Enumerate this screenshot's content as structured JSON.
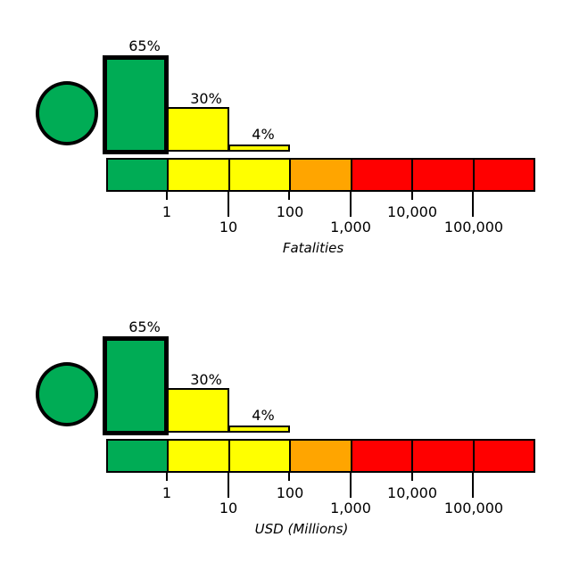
{
  "colors": {
    "green": "#00AC55",
    "yellow": "#FFFF00",
    "orange": "#FFA500",
    "red": "#FF0000",
    "outline": "#000000"
  },
  "panels": [
    {
      "axis_label": "Fatalities",
      "marker": {
        "shape": "circle",
        "color": "#00AC55"
      },
      "bars": [
        {
          "label": "65%",
          "value": 65,
          "color": "#00AC55",
          "emphasized": true
        },
        {
          "label": "30%",
          "value": 30,
          "color": "#FFFF00",
          "emphasized": false
        },
        {
          "label": "4%",
          "value": 4,
          "color": "#FFFF00",
          "emphasized": false
        }
      ],
      "scale": {
        "segments": [
          {
            "color": "#00AC55"
          },
          {
            "color": "#FFFF00"
          },
          {
            "color": "#FFFF00"
          },
          {
            "color": "#FFA500"
          },
          {
            "color": "#FF0000"
          },
          {
            "color": "#FF0000"
          },
          {
            "color": "#FF0000"
          }
        ],
        "tick_labels_row1": [
          "1",
          "100",
          "10,000"
        ],
        "tick_labels_row2": [
          "10",
          "1,000",
          "100,000"
        ]
      }
    },
    {
      "axis_label": "USD (Millions)",
      "marker": {
        "shape": "circle",
        "color": "#00AC55"
      },
      "bars": [
        {
          "label": "65%",
          "value": 65,
          "color": "#00AC55",
          "emphasized": true
        },
        {
          "label": "30%",
          "value": 30,
          "color": "#FFFF00",
          "emphasized": false
        },
        {
          "label": "4%",
          "value": 4,
          "color": "#FFFF00",
          "emphasized": false
        }
      ],
      "scale": {
        "segments": [
          {
            "color": "#00AC55"
          },
          {
            "color": "#FFFF00"
          },
          {
            "color": "#FFFF00"
          },
          {
            "color": "#FFA500"
          },
          {
            "color": "#FF0000"
          },
          {
            "color": "#FF0000"
          },
          {
            "color": "#FF0000"
          }
        ],
        "tick_labels_row1": [
          "1",
          "100",
          "10,000"
        ],
        "tick_labels_row2": [
          "10",
          "1,000",
          "100,000"
        ]
      }
    }
  ],
  "chart_data": [
    {
      "type": "bar",
      "xlabel": "Fatalities",
      "x_scale": "log10",
      "bin_edges": [
        0.1,
        1,
        10,
        100
      ],
      "categories": [
        "0.1-1",
        "1-10",
        "10-100"
      ],
      "values": [
        65,
        30,
        4
      ],
      "bar_labels": [
        "65%",
        "30%",
        "4%"
      ],
      "x_ticks": [
        1,
        10,
        100,
        1000,
        10000,
        100000
      ],
      "x_tick_labels": [
        "1",
        "10",
        "100",
        "1,000",
        "10,000",
        "100,000"
      ],
      "x_range": [
        0.1,
        1000000
      ],
      "ylim": [
        0,
        70
      ],
      "grid": false,
      "marker": "green circle at far left",
      "color_scale_bins": [
        {
          "range": [
            0.1,
            1
          ],
          "color": "#00AC55",
          "level": "green"
        },
        {
          "range": [
            1,
            10
          ],
          "color": "#FFFF00",
          "level": "yellow"
        },
        {
          "range": [
            10,
            100
          ],
          "color": "#FFFF00",
          "level": "yellow"
        },
        {
          "range": [
            100,
            1000
          ],
          "color": "#FFA500",
          "level": "orange"
        },
        {
          "range": [
            1000,
            10000
          ],
          "color": "#FF0000",
          "level": "red"
        },
        {
          "range": [
            10000,
            100000
          ],
          "color": "#FF0000",
          "level": "red"
        },
        {
          "range": [
            100000,
            1000000
          ],
          "color": "#FF0000",
          "level": "red"
        }
      ]
    },
    {
      "type": "bar",
      "xlabel": "USD (Millions)",
      "x_scale": "log10",
      "bin_edges": [
        0.1,
        1,
        10,
        100
      ],
      "categories": [
        "0.1-1",
        "1-10",
        "10-100"
      ],
      "values": [
        65,
        30,
        4
      ],
      "bar_labels": [
        "65%",
        "30%",
        "4%"
      ],
      "x_ticks": [
        1,
        10,
        100,
        1000,
        10000,
        100000
      ],
      "x_tick_labels": [
        "1",
        "10",
        "100",
        "1,000",
        "10,000",
        "100,000"
      ],
      "x_range": [
        0.1,
        1000000
      ],
      "ylim": [
        0,
        70
      ],
      "grid": false,
      "marker": "green circle at far left",
      "color_scale_bins": [
        {
          "range": [
            0.1,
            1
          ],
          "color": "#00AC55",
          "level": "green"
        },
        {
          "range": [
            1,
            10
          ],
          "color": "#FFFF00",
          "level": "yellow"
        },
        {
          "range": [
            10,
            100
          ],
          "color": "#FFFF00",
          "level": "yellow"
        },
        {
          "range": [
            100,
            1000
          ],
          "color": "#FFA500",
          "level": "orange"
        },
        {
          "range": [
            1000,
            10000
          ],
          "color": "#FF0000",
          "level": "red"
        },
        {
          "range": [
            10000,
            100000
          ],
          "color": "#FF0000",
          "level": "red"
        },
        {
          "range": [
            100000,
            1000000
          ],
          "color": "#FF0000",
          "level": "red"
        }
      ]
    }
  ]
}
